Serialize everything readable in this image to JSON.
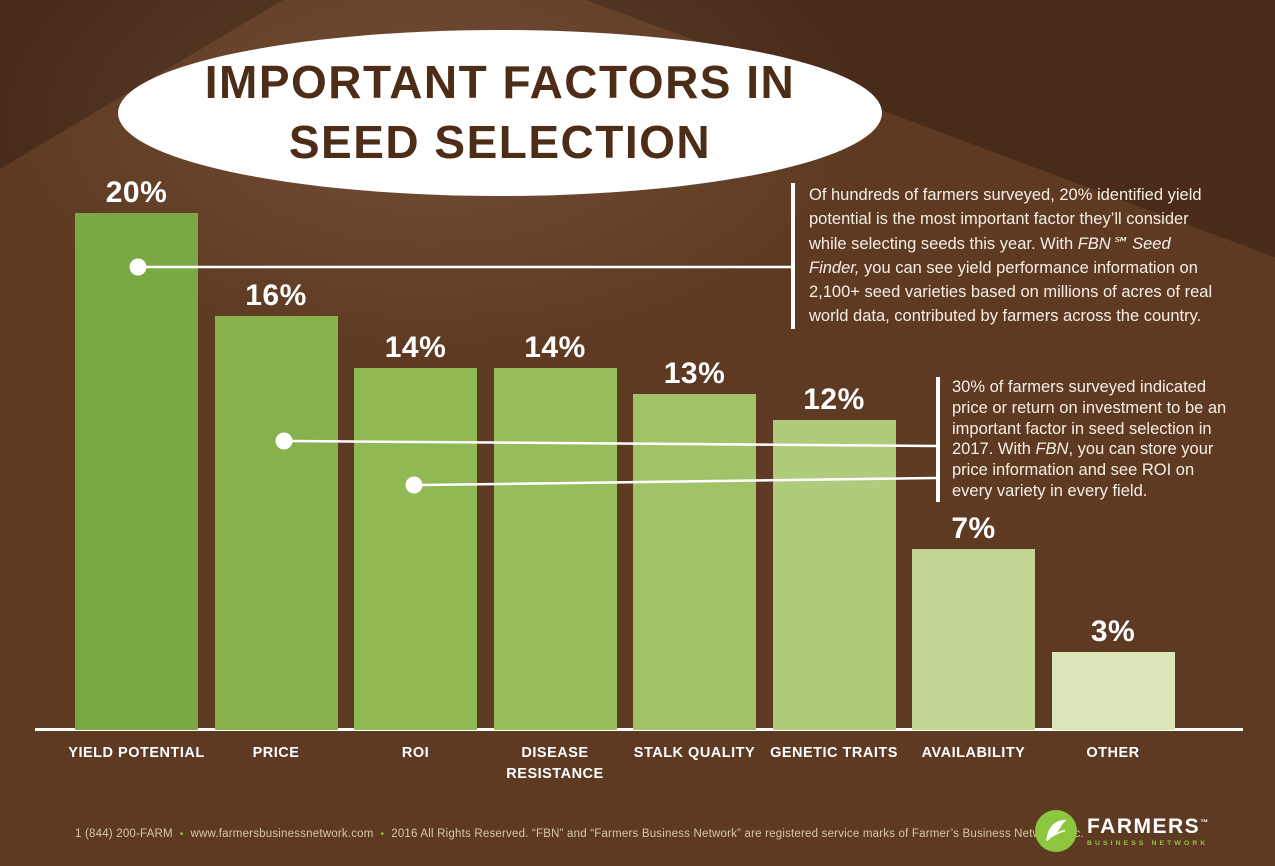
{
  "title": {
    "line1": "IMPORTANT FACTORS IN",
    "line2": "SEED SELECTION"
  },
  "chart_data": {
    "type": "bar",
    "title": "IMPORTANT FACTORS IN SEED SELECTION",
    "categories": [
      "YIELD POTENTIAL",
      "PRICE",
      "ROI",
      "DISEASE RESISTANCE",
      "STALK QUALITY",
      "GENETIC TRAITS",
      "AVAILABILITY",
      "OTHER"
    ],
    "values": [
      20,
      16,
      14,
      14,
      13,
      12,
      7,
      3
    ],
    "value_labels": [
      "20%",
      "16%",
      "14%",
      "14%",
      "13%",
      "12%",
      "7%",
      "3%"
    ],
    "bar_colors": [
      "#7aa844",
      "#87b14d",
      "#90b954",
      "#96bd5a",
      "#a1c367",
      "#afcb7b",
      "#c1d693",
      "#dbe6b8"
    ],
    "xlabel": "",
    "ylabel": "",
    "ylim": [
      0,
      20
    ],
    "grid": false,
    "legend": "none",
    "annotations": [
      {
        "text": "Of hundreds of farmers surveyed, 20% identified yield potential is the most important factor they’ll consider while selecting seeds this year. With *FBN℠ Seed Finder,* you can see yield performance information on 2,100+ seed varieties based on millions of acres of real world data, contributed by farmers across the country."
      },
      {
        "text": "30% of farmers surveyed indicated price or return on investment to be an important factor in seed selection in 2017. With *FBN*, you can store your price information and see ROI on every variety in every field."
      }
    ]
  },
  "footer": {
    "phone": "1 (844) 200-FARM",
    "website": "www.farmersbusinessnetwork.com",
    "copyright": "2016 All Rights Reserved. “FBN” and “Farmers Business Network” are registered service marks of Farmer’s Business Network, Inc.",
    "separator": "•"
  },
  "logo": {
    "name": "FARMERS",
    "tm": "™",
    "subtitle": "BUSINESS NETWORK"
  },
  "colors": {
    "background": "#5e3a23",
    "title_text": "#4d2d18",
    "ellipse": "#ffffff",
    "annotation_text": "#f6efe2",
    "footer_text": "#d8c7a2",
    "brand_green": "#8dc63f",
    "axis": "#ffffff"
  }
}
